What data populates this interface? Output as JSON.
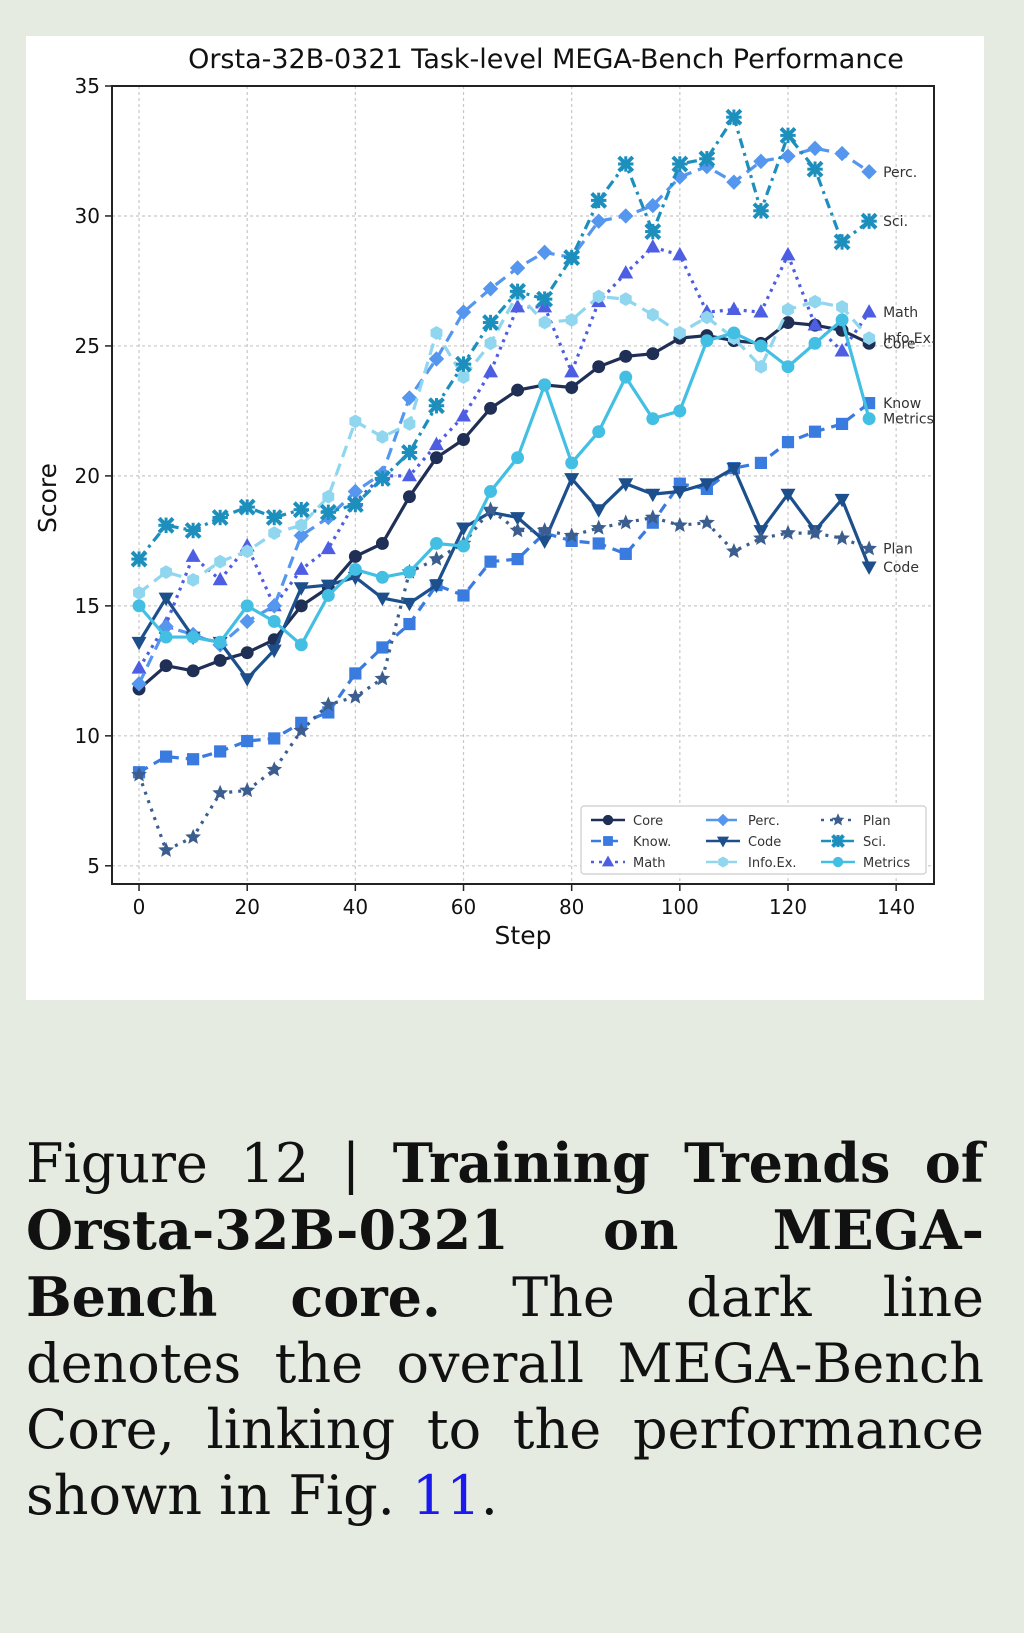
{
  "chart_data": {
    "type": "line",
    "title": "Orsta-32B-0321 Task-level MEGA-Bench Performance",
    "xlabel": "Step",
    "ylabel": "Score",
    "xlim": [
      -5,
      147
    ],
    "ylim": [
      4.3,
      35
    ],
    "xticks": [
      0,
      20,
      40,
      60,
      80,
      100,
      120,
      140
    ],
    "yticks": [
      5,
      10,
      15,
      20,
      25,
      30,
      35
    ],
    "grid": true,
    "legend": "lower-right",
    "x": [
      0,
      5,
      10,
      15,
      20,
      25,
      30,
      35,
      40,
      45,
      50,
      55,
      60,
      65,
      70,
      75,
      80,
      85,
      90,
      95,
      100,
      105,
      110,
      115,
      120,
      125,
      130,
      135
    ],
    "series": [
      {
        "name": "Core",
        "color": "#1f2f55",
        "dash": "solid",
        "marker": "circle",
        "end_label": "Core",
        "values": [
          11.8,
          12.7,
          12.5,
          12.9,
          13.2,
          13.7,
          15.0,
          15.7,
          16.9,
          17.4,
          19.2,
          20.7,
          21.4,
          22.6,
          23.3,
          23.5,
          23.4,
          24.2,
          24.6,
          24.7,
          25.3,
          25.4,
          25.2,
          25.1,
          25.9,
          25.8,
          25.6,
          25.1
        ]
      },
      {
        "name": "Know.",
        "color": "#3a7be0",
        "dash": "10,7",
        "marker": "square",
        "end_label": "Know",
        "values": [
          8.6,
          9.2,
          9.1,
          9.4,
          9.8,
          9.9,
          10.5,
          10.9,
          12.4,
          13.4,
          14.3,
          15.8,
          15.4,
          16.7,
          16.8,
          17.8,
          17.5,
          17.4,
          17.0,
          18.2,
          19.7,
          19.5,
          20.3,
          20.5,
          21.3,
          21.7,
          22.0,
          22.8
        ]
      },
      {
        "name": "Math",
        "color": "#4d5ee3",
        "dash": "3,5",
        "marker": "triangle-up",
        "end_label": "Math",
        "values": [
          12.6,
          14.3,
          16.9,
          16.0,
          17.3,
          15.0,
          16.4,
          17.2,
          19.0,
          20.0,
          20.0,
          21.2,
          22.3,
          24.0,
          26.5,
          26.5,
          24.0,
          26.7,
          27.8,
          28.8,
          28.5,
          26.3,
          26.4,
          26.3,
          28.5,
          25.8,
          24.8,
          26.3
        ]
      },
      {
        "name": "Perc.",
        "color": "#5596ee",
        "dash": "12,7",
        "marker": "diamond",
        "end_label": "Perc.",
        "values": [
          12.0,
          14.2,
          13.9,
          13.5,
          14.4,
          15.0,
          17.7,
          18.4,
          19.4,
          20.1,
          23.0,
          24.5,
          26.3,
          27.2,
          28.0,
          28.6,
          28.4,
          29.8,
          30.0,
          30.4,
          31.5,
          31.9,
          31.3,
          32.1,
          32.3,
          32.6,
          32.4,
          31.7
        ]
      },
      {
        "name": "Code",
        "color": "#1c4f8c",
        "dash": "solid",
        "marker": "triangle-down",
        "end_label": "Code",
        "values": [
          13.6,
          15.3,
          13.8,
          13.6,
          12.2,
          13.3,
          15.7,
          15.8,
          16.1,
          15.3,
          15.1,
          15.8,
          18.0,
          18.6,
          18.4,
          17.5,
          19.9,
          18.7,
          19.7,
          19.3,
          19.4,
          19.7,
          20.3,
          17.9,
          19.3,
          17.9,
          19.1,
          16.5
        ]
      },
      {
        "name": "Info.Ex.",
        "color": "#8fd6ee",
        "dash": "12,7",
        "marker": "hexagon",
        "end_label": "Info.Ex.",
        "values": [
          15.5,
          16.3,
          16.0,
          16.7,
          17.1,
          17.8,
          18.1,
          19.2,
          22.1,
          21.5,
          22.0,
          25.5,
          23.8,
          25.1,
          27.0,
          25.9,
          26.0,
          26.9,
          26.8,
          26.2,
          25.5,
          26.1,
          25.3,
          24.2,
          26.4,
          26.7,
          26.5,
          25.3
        ]
      },
      {
        "name": "Plan",
        "color": "#3c5e8e",
        "dash": "3,6",
        "marker": "star",
        "end_label": "Plan",
        "values": [
          8.5,
          5.6,
          6.1,
          7.8,
          7.9,
          8.7,
          10.2,
          11.2,
          11.5,
          12.2,
          16.3,
          16.8,
          17.4,
          18.7,
          17.9,
          17.9,
          17.7,
          18.0,
          18.2,
          18.4,
          18.1,
          18.2,
          17.1,
          17.6,
          17.8,
          17.8,
          17.6,
          17.2
        ]
      },
      {
        "name": "Sci.",
        "color": "#1d8fbd",
        "dash": "10,5,3,5",
        "marker": "x-cross",
        "end_label": "Sci.",
        "values": [
          16.8,
          18.1,
          17.9,
          18.4,
          18.8,
          18.4,
          18.7,
          18.6,
          18.9,
          19.9,
          20.9,
          22.7,
          24.3,
          25.9,
          27.1,
          26.8,
          28.4,
          30.6,
          32.0,
          29.4,
          32.0,
          32.2,
          33.8,
          30.2,
          33.1,
          31.8,
          29.0,
          29.8
        ]
      },
      {
        "name": "Metrics",
        "color": "#43bfe3",
        "dash": "solid",
        "marker": "circle",
        "end_label": "Metrics",
        "values": [
          15.0,
          13.8,
          13.8,
          13.6,
          15.0,
          14.4,
          13.5,
          15.4,
          16.4,
          16.1,
          16.3,
          17.4,
          17.3,
          19.4,
          20.7,
          23.5,
          20.5,
          21.7,
          23.8,
          22.2,
          22.5,
          25.2,
          25.5,
          25.0,
          24.2,
          25.1,
          26.0,
          22.2
        ]
      }
    ]
  },
  "caption": {
    "prefix": "Figure 12 | ",
    "bold": "Training Trends of Orsta-32B-0321 on MEGA-Bench core.",
    "text": "  The dark line denotes the overall MEGA-Bench Core, linking to the performance shown in Fig. ",
    "ref": "11",
    "suffix": "."
  }
}
